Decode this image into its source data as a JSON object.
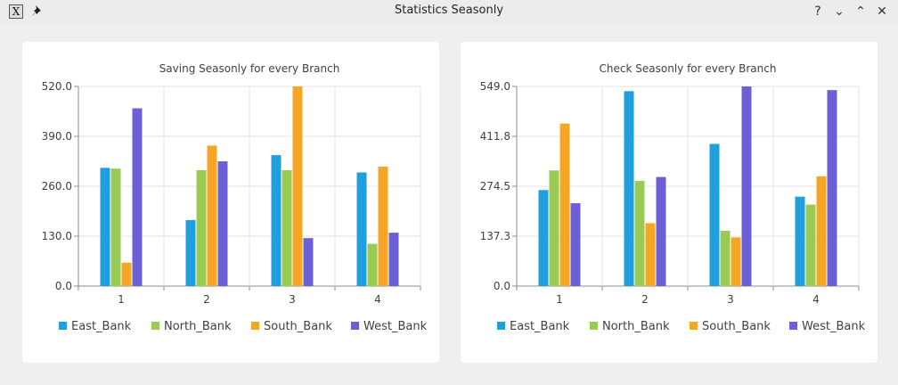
{
  "window": {
    "title": "Statistics Seasonly",
    "app_icon_glyph": "X",
    "pin_icon": "pin-icon",
    "help_glyph": "?",
    "minimize_glyph": "⌄",
    "maximize_glyph": "⌃",
    "close_glyph": "✕"
  },
  "colors": [
    "#209fdf",
    "#99ca53",
    "#f6a625",
    "#6d5fd5"
  ],
  "chart_data": [
    {
      "type": "bar",
      "title": "Saving Seasonly for every Branch",
      "categories": [
        "1",
        "2",
        "3",
        "4"
      ],
      "ylim": [
        0,
        520
      ],
      "yticks": [
        "0.0",
        "130.0",
        "260.0",
        "390.0",
        "520.0"
      ],
      "grid": true,
      "legend_position": "bottom",
      "series": [
        {
          "name": "East_Bank",
          "values": [
            308,
            172,
            341,
            296
          ]
        },
        {
          "name": "North_Bank",
          "values": [
            306,
            302,
            302,
            110
          ]
        },
        {
          "name": "South_Bank",
          "values": [
            61,
            366,
            520,
            311
          ]
        },
        {
          "name": "West_Bank",
          "values": [
            463,
            325,
            125,
            139
          ]
        }
      ]
    },
    {
      "type": "bar",
      "title": "Check Seasonly for every Branch",
      "categories": [
        "1",
        "2",
        "3",
        "4"
      ],
      "ylim": [
        0,
        549
      ],
      "yticks": [
        "0.0",
        "137.3",
        "274.5",
        "411.8",
        "549.0"
      ],
      "grid": true,
      "legend_position": "bottom",
      "series": [
        {
          "name": "East_Bank",
          "values": [
            264,
            536,
            391,
            246
          ]
        },
        {
          "name": "North_Bank",
          "values": [
            318,
            289,
            152,
            224
          ]
        },
        {
          "name": "South_Bank",
          "values": [
            447,
            173,
            134,
            302
          ]
        },
        {
          "name": "West_Bank",
          "values": [
            228,
            300,
            549,
            539
          ]
        }
      ]
    }
  ]
}
